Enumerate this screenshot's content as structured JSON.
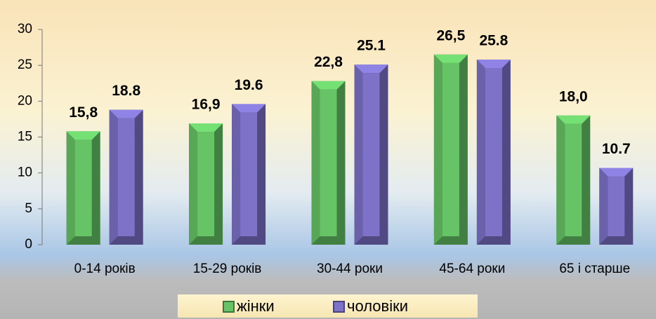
{
  "chart_data": {
    "type": "bar",
    "categories": [
      "0-14 років",
      "15-29 років",
      "30-44 роки",
      "45-64 роки",
      "65 і старше"
    ],
    "series": [
      {
        "name": "жінки",
        "color": "#66c466",
        "values": [
          15.8,
          16.9,
          22.8,
          26.5,
          18.0
        ],
        "value_labels": [
          "15,8",
          "16,9",
          "22,8",
          "26,5",
          "18,0"
        ]
      },
      {
        "name": "чоловіки",
        "color": "#7d72c8",
        "values": [
          18.8,
          19.6,
          25.1,
          25.8,
          10.7
        ],
        "value_labels": [
          "18.8",
          "19.6",
          "25.1",
          "25.8",
          "10.7"
        ]
      }
    ],
    "ylim": [
      0,
      30
    ],
    "yticks": [
      0,
      5,
      10,
      15,
      20,
      25,
      30
    ]
  }
}
